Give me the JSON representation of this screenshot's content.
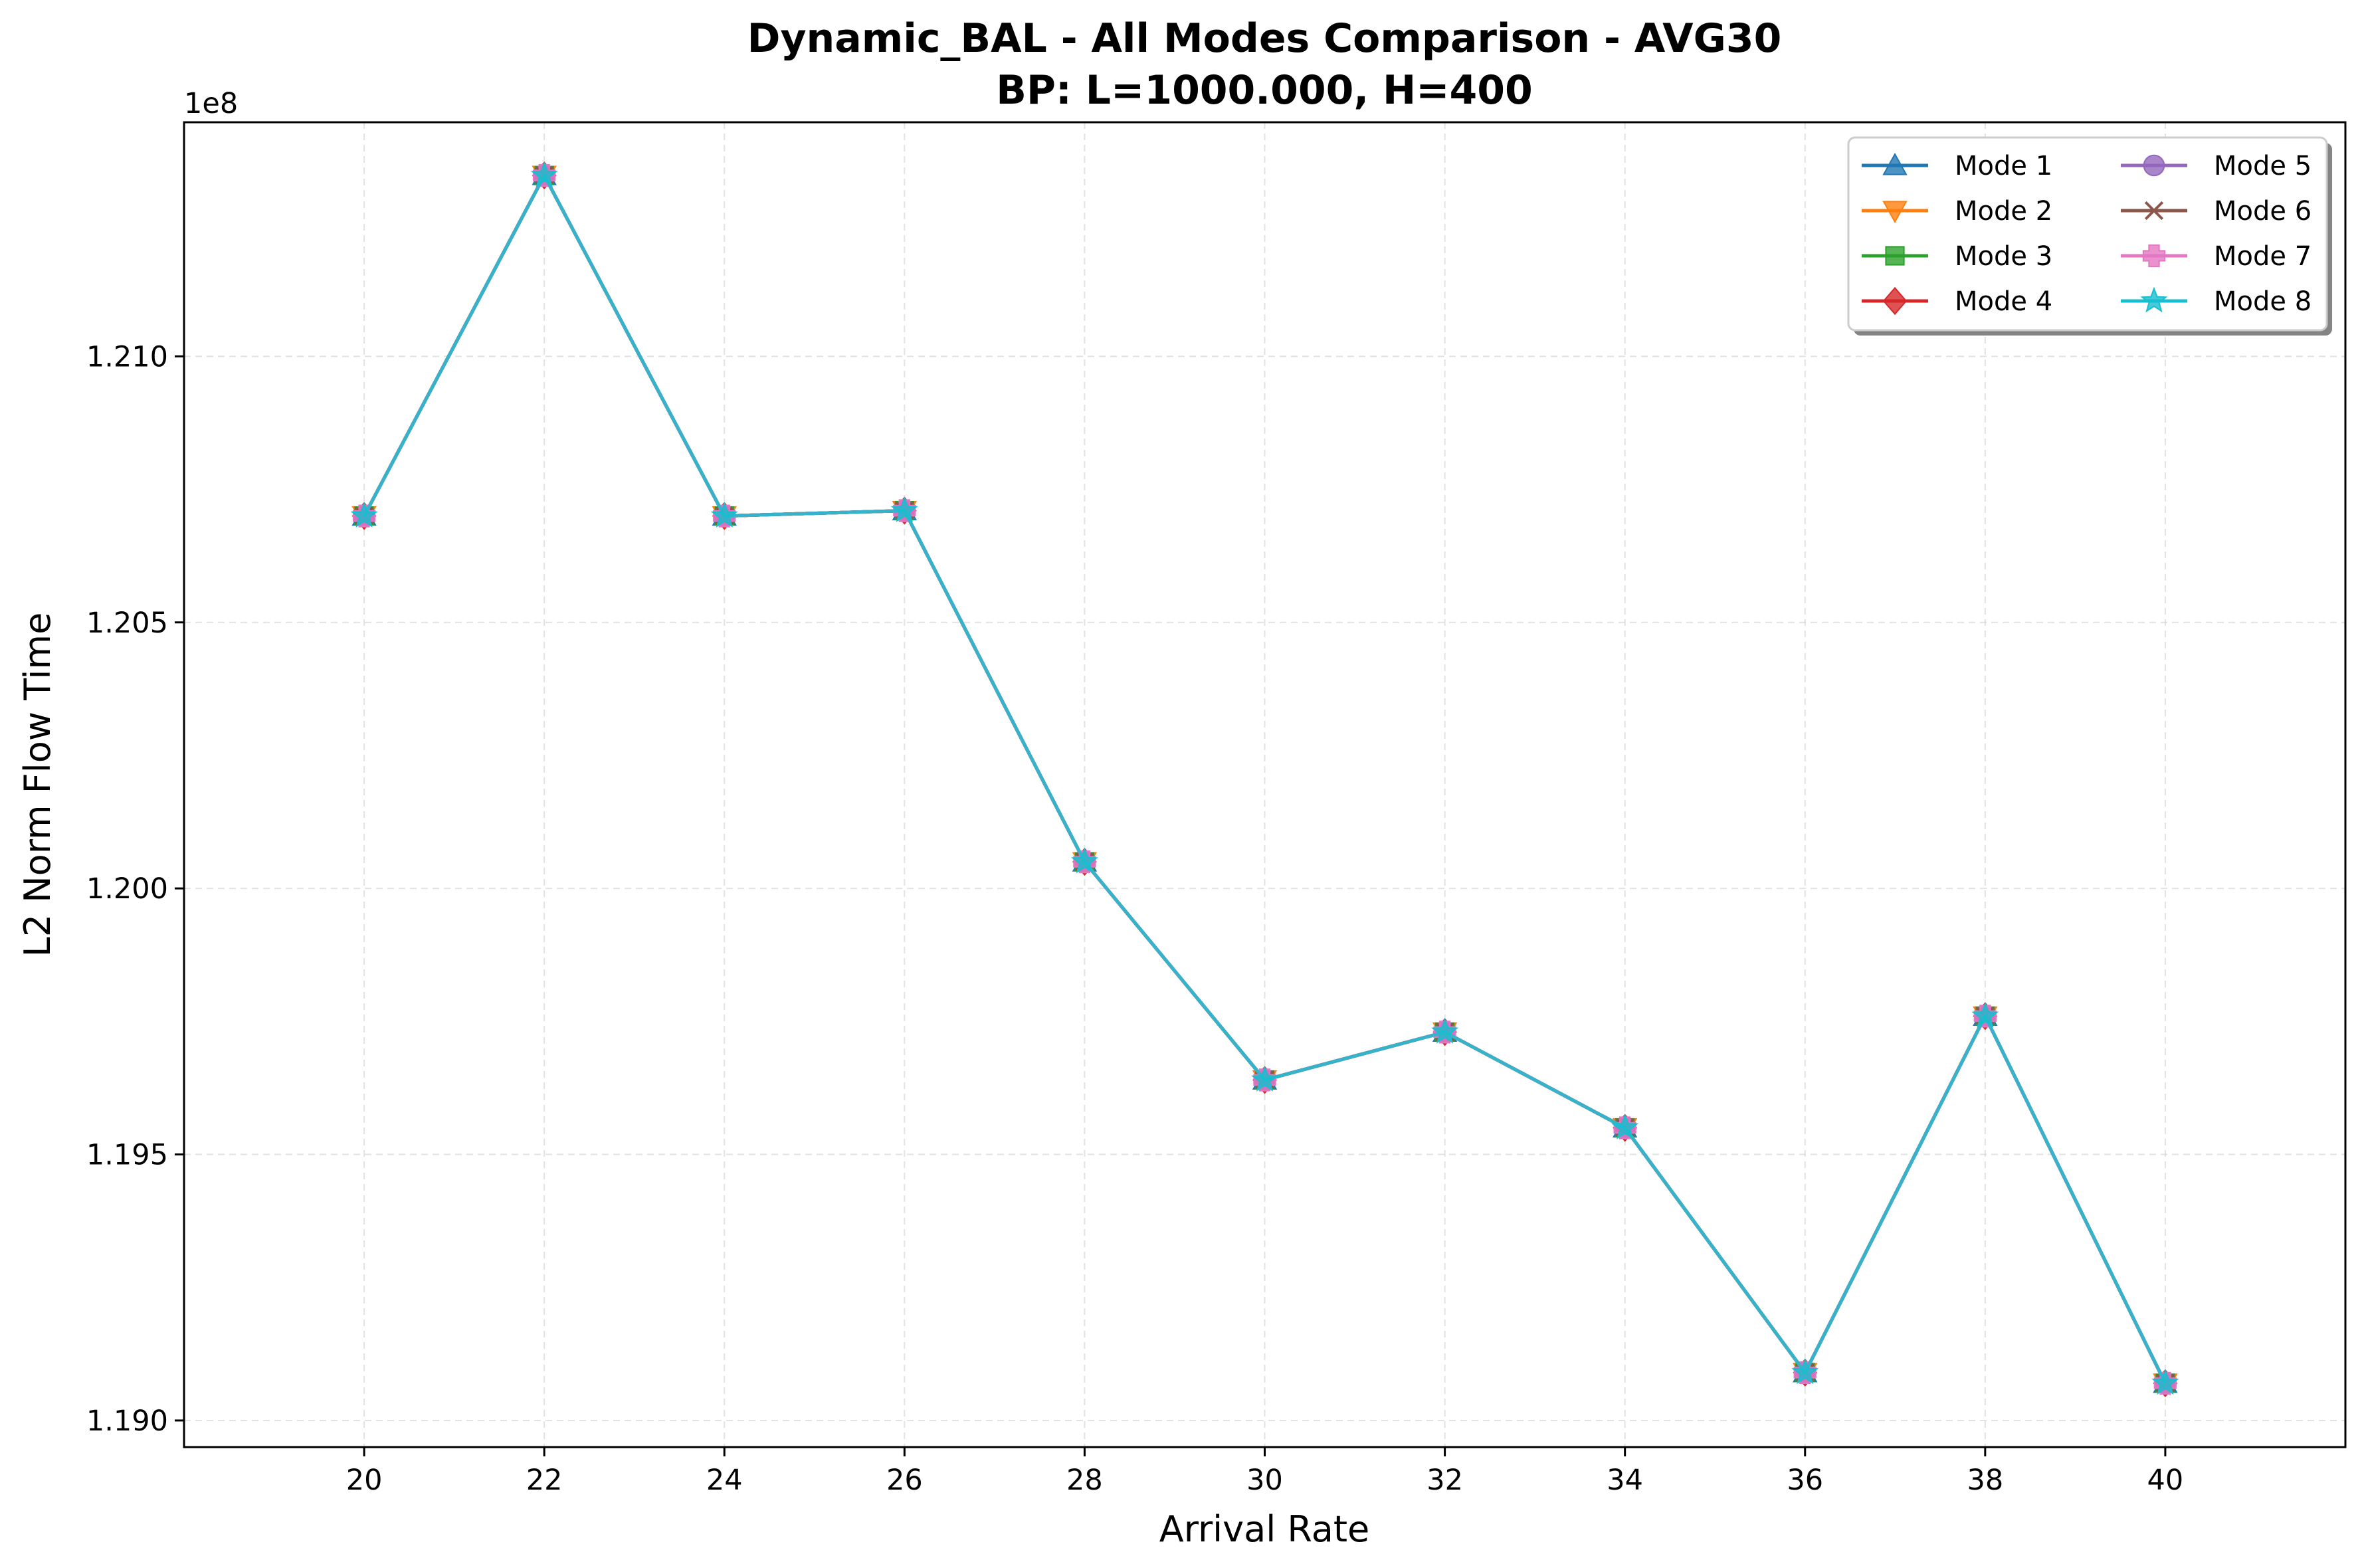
{
  "chart_data": {
    "type": "line",
    "title": "Dynamic_BAL - All Modes Comparison - AVG30",
    "subtitle": "BP: L=1000.000, H=400",
    "xlabel": "Arrival Rate",
    "ylabel": "L2 Norm Flow Time",
    "y_offset_label": "1e8",
    "y_scale": 100000000,
    "xlim": [
      18,
      42
    ],
    "ylim": [
      1.1895,
      1.2144
    ],
    "x": [
      20,
      22,
      24,
      26,
      28,
      30,
      32,
      34,
      36,
      38,
      40
    ],
    "x_tick_labels": [
      "20",
      "22",
      "24",
      "26",
      "28",
      "30",
      "32",
      "34",
      "36",
      "38",
      "40"
    ],
    "y_ticks": [
      1.19,
      1.195,
      1.2,
      1.205,
      1.21
    ],
    "y_tick_labels": [
      "1.190",
      "1.195",
      "1.200",
      "1.205",
      "1.210"
    ],
    "grid": true,
    "legend_position": "top-right",
    "legend_columns": 2,
    "series": [
      {
        "name": "Mode 1",
        "color": "#1f77b4",
        "marker": "triangle-up",
        "values": [
          1.207,
          1.2134,
          1.207,
          1.2071,
          1.2005,
          1.1964,
          1.1973,
          1.1955,
          1.1909,
          1.1976,
          1.1907
        ]
      },
      {
        "name": "Mode 2",
        "color": "#ff7f0e",
        "marker": "triangle-down",
        "values": [
          1.207,
          1.2134,
          1.207,
          1.2071,
          1.2005,
          1.1964,
          1.1973,
          1.1955,
          1.1909,
          1.1976,
          1.1907
        ]
      },
      {
        "name": "Mode 3",
        "color": "#2ca02c",
        "marker": "square",
        "values": [
          1.207,
          1.2134,
          1.207,
          1.2071,
          1.2005,
          1.1964,
          1.1973,
          1.1955,
          1.1909,
          1.1976,
          1.1907
        ]
      },
      {
        "name": "Mode 4",
        "color": "#d62728",
        "marker": "diamond",
        "values": [
          1.207,
          1.2134,
          1.207,
          1.2071,
          1.2005,
          1.1964,
          1.1973,
          1.1955,
          1.1909,
          1.1976,
          1.1907
        ]
      },
      {
        "name": "Mode 5",
        "color": "#9467bd",
        "marker": "circle",
        "values": [
          1.207,
          1.2134,
          1.207,
          1.2071,
          1.2005,
          1.1964,
          1.1973,
          1.1955,
          1.1909,
          1.1976,
          1.1907
        ]
      },
      {
        "name": "Mode 6",
        "color": "#8c564b",
        "marker": "x",
        "values": [
          1.207,
          1.2134,
          1.207,
          1.2071,
          1.2005,
          1.1964,
          1.1973,
          1.1955,
          1.1909,
          1.1976,
          1.1907
        ]
      },
      {
        "name": "Mode 7",
        "color": "#e377c2",
        "marker": "plus",
        "values": [
          1.207,
          1.2134,
          1.207,
          1.2071,
          1.2005,
          1.1964,
          1.1973,
          1.1955,
          1.1909,
          1.1976,
          1.1907
        ]
      },
      {
        "name": "Mode 8",
        "color": "#17becf",
        "marker": "star",
        "values": [
          1.207,
          1.2134,
          1.207,
          1.2071,
          1.2005,
          1.1964,
          1.1973,
          1.1955,
          1.1909,
          1.1976,
          1.1907
        ]
      }
    ]
  }
}
